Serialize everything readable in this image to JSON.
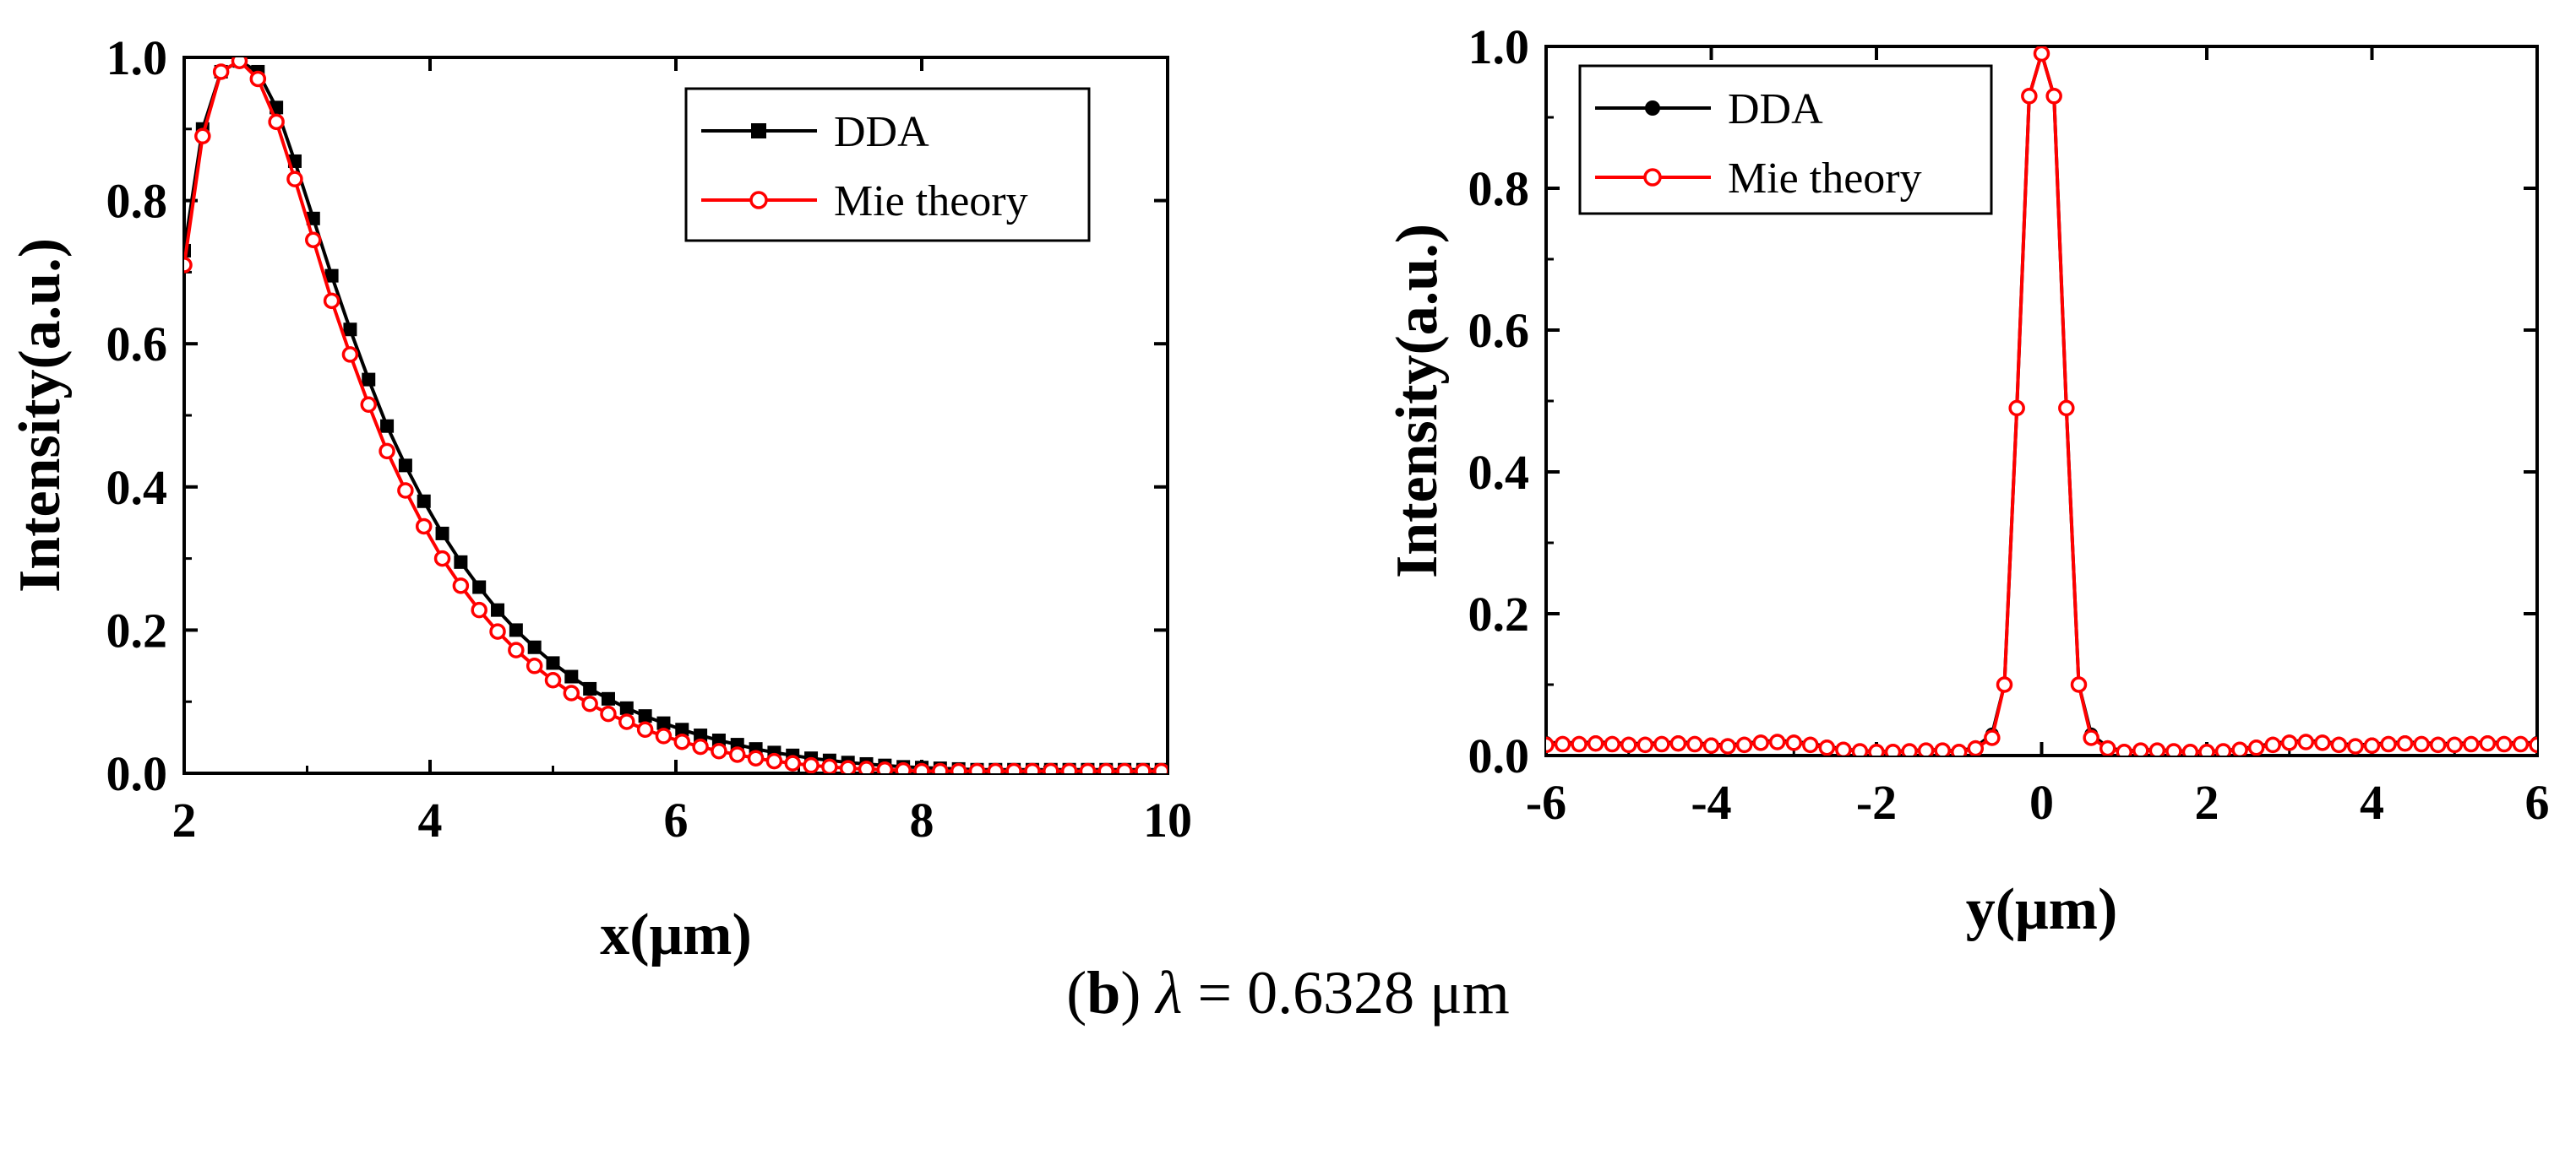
{
  "colors": {
    "dda": "#000000",
    "mie": "#ff0000",
    "frame": "#000000"
  },
  "caption": {
    "prefix": "(",
    "letter": "b",
    "suffix": ") ",
    "symbol": "λ",
    "text": " = 0.6328 μm"
  },
  "chart_data": [
    {
      "type": "line",
      "xlabel": "x(μm)",
      "ylabel": "Intensity(a.u.)",
      "xlim": [
        2,
        10
      ],
      "ylim": [
        0,
        1.0
      ],
      "xticks": [
        "2",
        "4",
        "6",
        "8",
        "10"
      ],
      "yticks": [
        "0.0",
        "0.2",
        "0.4",
        "0.6",
        "0.8",
        "1.0"
      ],
      "legend": {
        "position": "top-right",
        "entries": [
          "DDA",
          "Mie theory"
        ]
      },
      "series": [
        {
          "name": "DDA",
          "marker": "square",
          "x": [
            2.0,
            2.15,
            2.3,
            2.45,
            2.6,
            2.75,
            2.9,
            3.05,
            3.2,
            3.35,
            3.5,
            3.65,
            3.8,
            3.95,
            4.1,
            4.25,
            4.4,
            4.55,
            4.7,
            4.85,
            5.0,
            5.15,
            5.3,
            5.45,
            5.6,
            5.75,
            5.9,
            6.05,
            6.2,
            6.35,
            6.5,
            6.65,
            6.8,
            6.95,
            7.1,
            7.25,
            7.4,
            7.55,
            7.7,
            7.85,
            8.0,
            8.15,
            8.3,
            8.45,
            8.6,
            8.75,
            8.9,
            9.05,
            9.2,
            9.35,
            9.5,
            9.65,
            9.8,
            9.95
          ],
          "values": [
            0.73,
            0.9,
            0.98,
            0.995,
            0.98,
            0.93,
            0.855,
            0.775,
            0.695,
            0.62,
            0.55,
            0.485,
            0.43,
            0.38,
            0.335,
            0.295,
            0.26,
            0.228,
            0.2,
            0.176,
            0.154,
            0.135,
            0.118,
            0.104,
            0.091,
            0.08,
            0.07,
            0.061,
            0.053,
            0.046,
            0.04,
            0.034,
            0.029,
            0.025,
            0.021,
            0.018,
            0.015,
            0.013,
            0.011,
            0.009,
            0.008,
            0.007,
            0.006,
            0.005,
            0.005,
            0.005,
            0.005,
            0.005,
            0.005,
            0.005,
            0.005,
            0.005,
            0.005,
            0.005
          ]
        },
        {
          "name": "Mie theory",
          "marker": "circle",
          "x": [
            2.0,
            2.15,
            2.3,
            2.45,
            2.6,
            2.75,
            2.9,
            3.05,
            3.2,
            3.35,
            3.5,
            3.65,
            3.8,
            3.95,
            4.1,
            4.25,
            4.4,
            4.55,
            4.7,
            4.85,
            5.0,
            5.15,
            5.3,
            5.45,
            5.6,
            5.75,
            5.9,
            6.05,
            6.2,
            6.35,
            6.5,
            6.65,
            6.8,
            6.95,
            7.1,
            7.25,
            7.4,
            7.55,
            7.7,
            7.85,
            8.0,
            8.15,
            8.3,
            8.45,
            8.6,
            8.75,
            8.9,
            9.05,
            9.2,
            9.35,
            9.5,
            9.65,
            9.8,
            9.95
          ],
          "values": [
            0.71,
            0.89,
            0.98,
            0.995,
            0.97,
            0.91,
            0.83,
            0.745,
            0.66,
            0.585,
            0.515,
            0.45,
            0.395,
            0.345,
            0.3,
            0.262,
            0.228,
            0.198,
            0.172,
            0.15,
            0.13,
            0.112,
            0.097,
            0.083,
            0.072,
            0.061,
            0.052,
            0.044,
            0.037,
            0.031,
            0.026,
            0.021,
            0.017,
            0.014,
            0.011,
            0.009,
            0.007,
            0.006,
            0.005,
            0.004,
            0.003,
            0.003,
            0.003,
            0.003,
            0.003,
            0.003,
            0.003,
            0.003,
            0.003,
            0.003,
            0.003,
            0.003,
            0.003,
            0.003
          ]
        }
      ]
    },
    {
      "type": "line",
      "xlabel": "y(μm)",
      "ylabel": "Intensity(a.u.)",
      "xlim": [
        -6,
        6
      ],
      "ylim": [
        0,
        1.0
      ],
      "xticks": [
        "-6",
        "-4",
        "-2",
        "0",
        "2",
        "4",
        "6"
      ],
      "yticks": [
        "0.0",
        "0.2",
        "0.4",
        "0.6",
        "0.8",
        "1.0"
      ],
      "legend": {
        "position": "top-left",
        "entries": [
          "DDA",
          "Mie theory"
        ]
      },
      "series": [
        {
          "name": "DDA",
          "marker": "circle",
          "x": [
            -6.0,
            -5.8,
            -5.6,
            -5.4,
            -5.2,
            -5.0,
            -4.8,
            -4.6,
            -4.4,
            -4.2,
            -4.0,
            -3.8,
            -3.6,
            -3.4,
            -3.2,
            -3.0,
            -2.8,
            -2.6,
            -2.4,
            -2.2,
            -2.0,
            -1.8,
            -1.6,
            -1.4,
            -1.2,
            -1.0,
            -0.8,
            -0.6,
            -0.45,
            -0.3,
            -0.15,
            0.0,
            0.15,
            0.3,
            0.45,
            0.6,
            0.8,
            1.0,
            1.2,
            1.4,
            1.6,
            1.8,
            2.0,
            2.2,
            2.4,
            2.6,
            2.8,
            3.0,
            3.2,
            3.4,
            3.6,
            3.8,
            4.0,
            4.2,
            4.4,
            4.6,
            4.8,
            5.0,
            5.2,
            5.4,
            5.6,
            5.8,
            6.0
          ],
          "values": [
            0.018,
            0.018,
            0.018,
            0.019,
            0.018,
            0.017,
            0.017,
            0.018,
            0.019,
            0.018,
            0.016,
            0.015,
            0.017,
            0.02,
            0.021,
            0.02,
            0.017,
            0.013,
            0.009,
            0.007,
            0.006,
            0.006,
            0.007,
            0.008,
            0.008,
            0.006,
            0.012,
            0.03,
            0.1,
            0.49,
            0.93,
            0.99,
            0.93,
            0.49,
            0.1,
            0.03,
            0.012,
            0.006,
            0.008,
            0.008,
            0.007,
            0.006,
            0.006,
            0.007,
            0.009,
            0.013,
            0.017,
            0.02,
            0.021,
            0.02,
            0.017,
            0.015,
            0.016,
            0.018,
            0.019,
            0.018,
            0.017,
            0.017,
            0.018,
            0.019,
            0.018,
            0.018,
            0.018
          ]
        },
        {
          "name": "Mie theory",
          "marker": "circle",
          "x": [
            -6.0,
            -5.8,
            -5.6,
            -5.4,
            -5.2,
            -5.0,
            -4.8,
            -4.6,
            -4.4,
            -4.2,
            -4.0,
            -3.8,
            -3.6,
            -3.4,
            -3.2,
            -3.0,
            -2.8,
            -2.6,
            -2.4,
            -2.2,
            -2.0,
            -1.8,
            -1.6,
            -1.4,
            -1.2,
            -1.0,
            -0.8,
            -0.6,
            -0.45,
            -0.3,
            -0.15,
            0.0,
            0.15,
            0.3,
            0.45,
            0.6,
            0.8,
            1.0,
            1.2,
            1.4,
            1.6,
            1.8,
            2.0,
            2.2,
            2.4,
            2.6,
            2.8,
            3.0,
            3.2,
            3.4,
            3.6,
            3.8,
            4.0,
            4.2,
            4.4,
            4.6,
            4.8,
            5.0,
            5.2,
            5.4,
            5.6,
            5.8,
            6.0
          ],
          "values": [
            0.015,
            0.016,
            0.016,
            0.017,
            0.016,
            0.015,
            0.015,
            0.016,
            0.017,
            0.016,
            0.014,
            0.013,
            0.015,
            0.018,
            0.019,
            0.018,
            0.015,
            0.011,
            0.008,
            0.006,
            0.005,
            0.005,
            0.006,
            0.007,
            0.007,
            0.005,
            0.01,
            0.025,
            0.1,
            0.49,
            0.93,
            0.99,
            0.93,
            0.49,
            0.1,
            0.025,
            0.01,
            0.005,
            0.007,
            0.007,
            0.006,
            0.005,
            0.005,
            0.006,
            0.008,
            0.011,
            0.015,
            0.018,
            0.019,
            0.018,
            0.015,
            0.013,
            0.014,
            0.016,
            0.017,
            0.016,
            0.015,
            0.015,
            0.016,
            0.017,
            0.016,
            0.016,
            0.015
          ]
        }
      ]
    }
  ]
}
